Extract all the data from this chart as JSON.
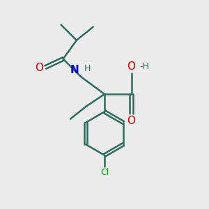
{
  "background_color": "#ebebeb",
  "bond_color": "#2d6b5e",
  "bond_width": 1.8,
  "text_color_dark": "#2d6b5e",
  "text_color_N": "#0000cc",
  "text_color_O": "#cc0000",
  "text_color_Cl": "#00aa00",
  "figsize": [
    3.0,
    3.0
  ],
  "dpi": 100,
  "xlim": [
    0,
    10
  ],
  "ylim": [
    0,
    10
  ]
}
